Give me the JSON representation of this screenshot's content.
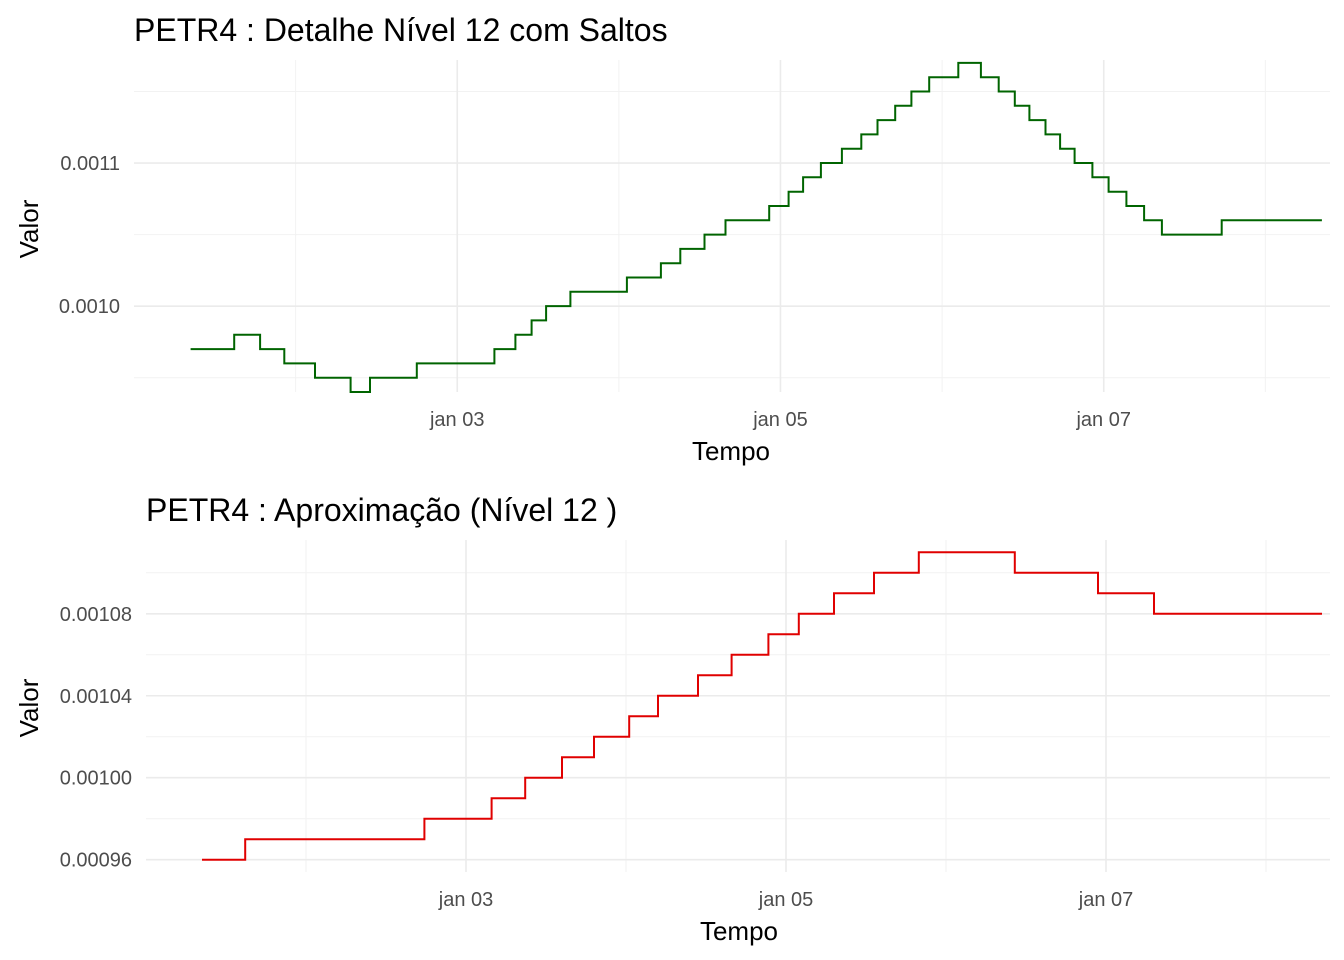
{
  "chart_data": [
    {
      "type": "line",
      "step": true,
      "title": "PETR4 : Detalhe Nível 12 com Saltos",
      "xlabel": "Tempo",
      "ylabel": "Valor",
      "x_ticks": [
        "jan 03",
        "jan 05",
        "jan 07"
      ],
      "x_tick_values": [
        3,
        5,
        7
      ],
      "y_ticks": [
        "0.0010",
        "0.0011"
      ],
      "y_tick_values": [
        0.001,
        0.0011
      ],
      "xlim": [
        1.0,
        8.4
      ],
      "ylim": [
        0.00094,
        0.001172
      ],
      "grid": true,
      "line_color": "#006400",
      "series": [
        {
          "x": [
            1.35,
            1.62,
            1.78,
            1.93,
            2.12,
            2.34,
            2.46,
            2.75,
            3.0,
            3.23,
            3.36,
            3.46,
            3.55,
            3.7,
            4.05,
            4.26,
            4.38,
            4.53,
            4.66,
            4.93,
            5.05,
            5.14,
            5.25,
            5.38,
            5.5,
            5.6,
            5.71,
            5.81,
            5.92,
            6.1,
            6.24,
            6.35,
            6.45,
            6.54,
            6.64,
            6.73,
            6.82,
            6.93,
            7.03,
            7.14,
            7.25,
            7.36,
            7.73,
            8.35
          ],
          "y": [
            0.00097,
            0.00098,
            0.00097,
            0.00096,
            0.00095,
            0.00094,
            0.00095,
            0.00096,
            0.00096,
            0.00097,
            0.00098,
            0.00099,
            0.001,
            0.00101,
            0.00102,
            0.00103,
            0.00104,
            0.00105,
            0.00106,
            0.00107,
            0.00108,
            0.00109,
            0.0011,
            0.00111,
            0.00112,
            0.00113,
            0.00114,
            0.00115,
            0.00116,
            0.00117,
            0.00116,
            0.00115,
            0.00114,
            0.00113,
            0.00112,
            0.00111,
            0.0011,
            0.00109,
            0.00108,
            0.00107,
            0.00106,
            0.00105,
            0.00106,
            0.00106
          ]
        }
      ]
    },
    {
      "type": "line",
      "step": true,
      "title": "PETR4 : Aproximação (Nível 12 )",
      "xlabel": "Tempo",
      "ylabel": "Valor",
      "x_ticks": [
        "jan 03",
        "jan 05",
        "jan 07"
      ],
      "x_tick_values": [
        3,
        5,
        7
      ],
      "y_ticks": [
        "0.00096",
        "0.00100",
        "0.00104",
        "0.00108"
      ],
      "y_tick_values": [
        0.00096,
        0.001,
        0.00104,
        0.00108
      ],
      "xlim": [
        1.0,
        8.4
      ],
      "ylim": [
        0.000954,
        0.001116
      ],
      "grid": true,
      "line_color": "#e00000",
      "series": [
        {
          "x": [
            1.35,
            1.62,
            2.74,
            2.96,
            3.16,
            3.37,
            3.6,
            3.8,
            4.02,
            4.2,
            4.45,
            4.66,
            4.89,
            5.08,
            5.3,
            5.55,
            5.83,
            6.43,
            6.95,
            7.3,
            8.35
          ],
          "y": [
            0.00096,
            0.00097,
            0.00098,
            0.00098,
            0.00099,
            0.001,
            0.00101,
            0.00102,
            0.00103,
            0.00104,
            0.00105,
            0.00106,
            0.00107,
            0.00108,
            0.00109,
            0.0011,
            0.00111,
            0.0011,
            0.00109,
            0.00108,
            0.00108
          ]
        }
      ]
    }
  ]
}
